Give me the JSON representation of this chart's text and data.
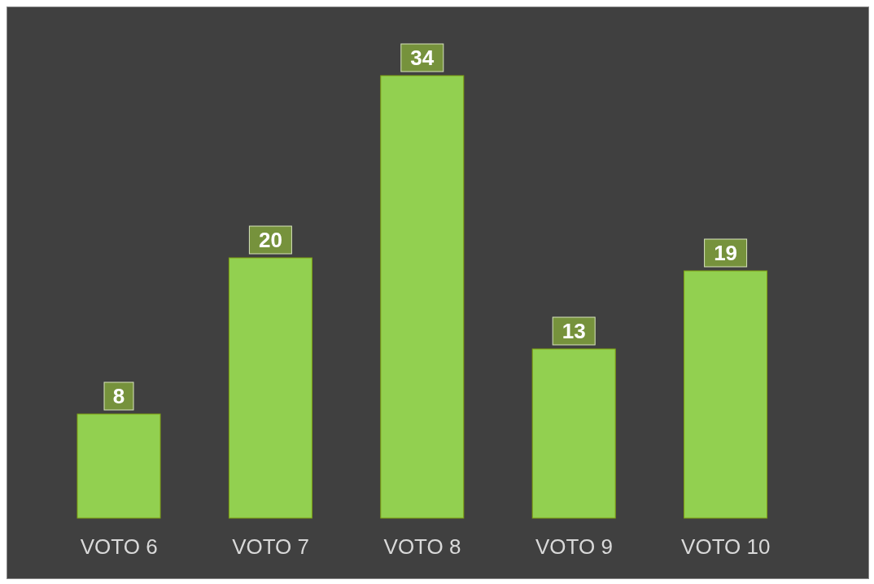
{
  "chart_data": {
    "type": "bar",
    "categories": [
      "VOTO 6",
      "VOTO 7",
      "VOTO 8",
      "VOTO 9",
      "VOTO 10"
    ],
    "values": [
      8,
      20,
      34,
      13,
      19
    ],
    "color": "#92d050",
    "data_labels": true
  }
}
